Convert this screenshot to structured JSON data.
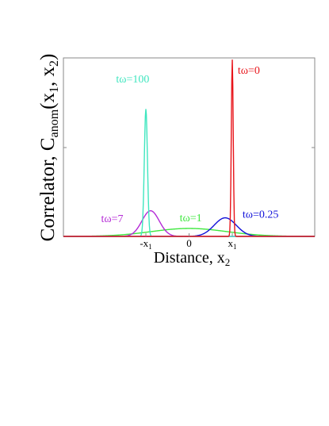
{
  "chart_data": {
    "type": "line",
    "xlabel": "Distance, x",
    "xlabel_sub": "2",
    "ylabel": {
      "prefix": "Correlator, C",
      "sub": "anom",
      "open": "(x",
      "sub1": "1",
      "comma": ", x",
      "sub2": "2",
      "close": ")"
    },
    "xlim": [
      -1.6,
      1.6
    ],
    "ylim": [
      0,
      1.0
    ],
    "grid": false,
    "x_ticks": [
      {
        "value": -0.55,
        "label": "-x",
        "sub": "1"
      },
      {
        "value": 0,
        "label": "0",
        "sub": ""
      },
      {
        "value": 0.55,
        "label": "x",
        "sub": "1"
      }
    ],
    "series": [
      {
        "name": "tω=0",
        "color": "#e8151b",
        "center": 0.55,
        "width": 0.012,
        "amplitude": 1.0,
        "label_x": 0.62,
        "label_y": 0.92
      },
      {
        "name": "tω=100",
        "color": "#3ee6bf",
        "center": -0.55,
        "width": 0.02,
        "amplitude": 0.72,
        "label_x": -0.93,
        "label_y": 0.87
      },
      {
        "name": "tω=0.25",
        "color": "#1010d9",
        "center": 0.46,
        "width": 0.14,
        "amplitude": 0.105,
        "label_x": 0.68,
        "label_y": 0.105
      },
      {
        "name": "tω=7",
        "color": "#b429d6",
        "center": -0.49,
        "width": 0.11,
        "amplitude": 0.145,
        "label_x": -1.12,
        "label_y": 0.08
      },
      {
        "name": "tω=1",
        "color": "#3fe83f",
        "center": 0.0,
        "width": 0.48,
        "amplitude": 0.045,
        "label_x": -0.12,
        "label_y": 0.085
      }
    ]
  }
}
